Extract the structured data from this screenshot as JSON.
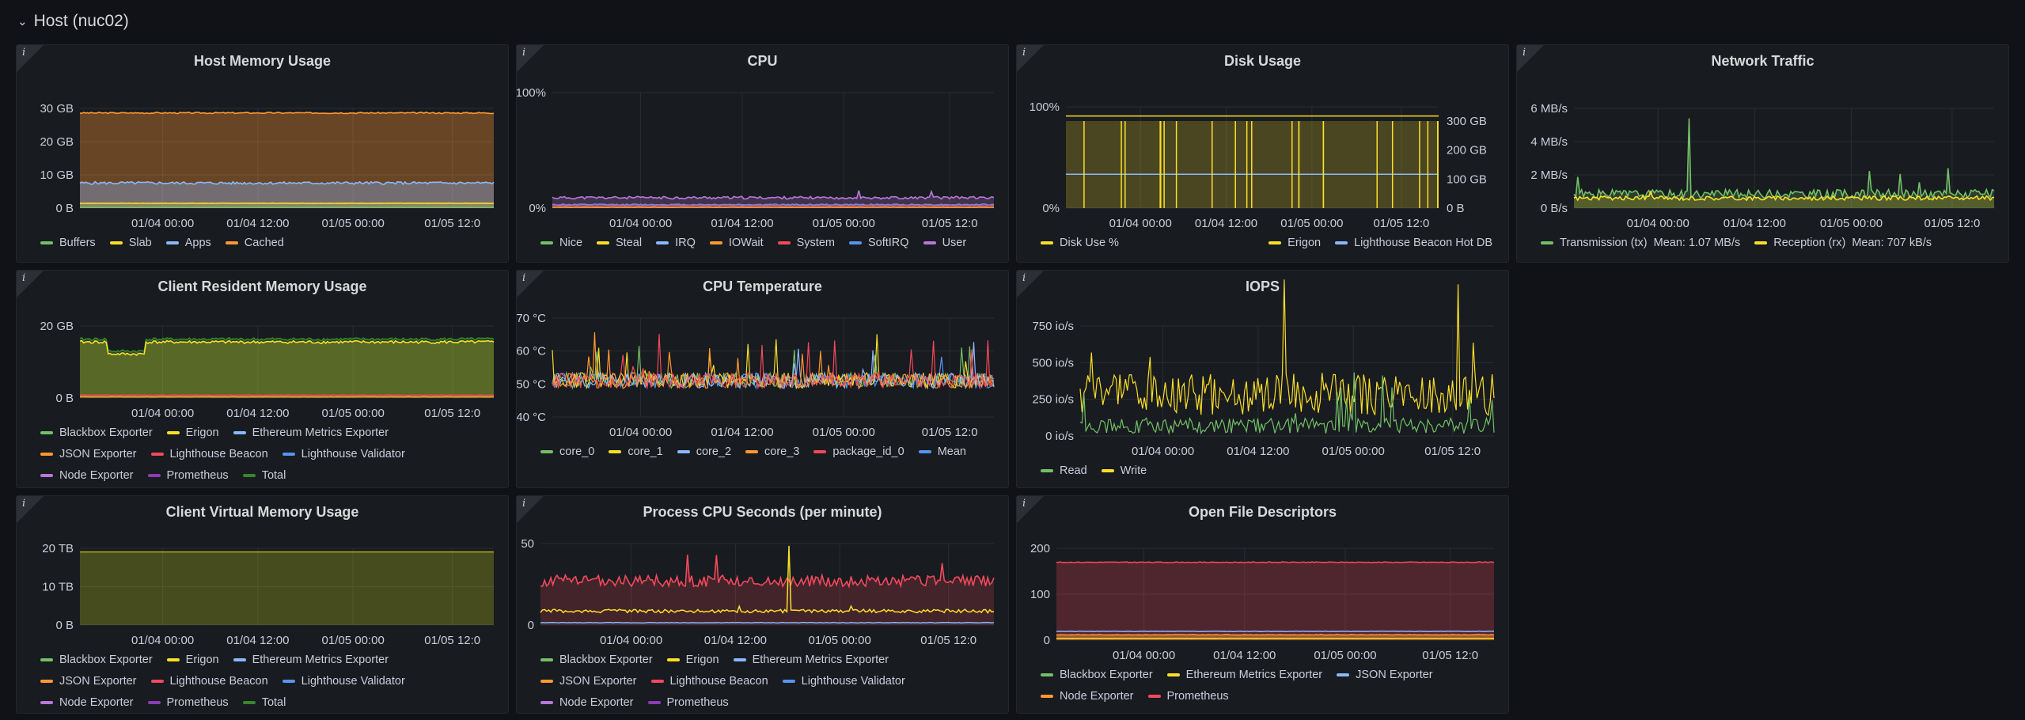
{
  "row": {
    "title": "Host (nuc02)"
  },
  "colors": {
    "green": "#73bf69",
    "yellow": "#fade2a",
    "blue": "#8ab8ff",
    "orange": "#ff9830",
    "red": "#f2495c",
    "blue2": "#5794f2",
    "purple": "#b877d9",
    "violet": "#8f3bb8",
    "darkgreen": "#37872d"
  },
  "panels": [
    {
      "id": "host-memory",
      "title": "Host Memory Usage",
      "yticks": [
        "30 GB",
        "20 GB",
        "10 GB",
        "0 B"
      ],
      "xticks": [
        "01/04 00:00",
        "01/04 12:00",
        "01/05 00:00",
        "01/05 12:0"
      ],
      "legend": [
        {
          "label": "Buffers",
          "color": "#73bf69"
        },
        {
          "label": "Slab",
          "color": "#fade2a"
        },
        {
          "label": "Apps",
          "color": "#8ab8ff"
        },
        {
          "label": "Cached",
          "color": "#ff9830"
        }
      ]
    },
    {
      "id": "cpu",
      "title": "CPU",
      "yticks": [
        "100%",
        "0%"
      ],
      "xticks": [
        "01/04 00:00",
        "01/04 12:00",
        "01/05 00:00",
        "01/05 12:0"
      ],
      "legend": [
        {
          "label": "Nice",
          "color": "#73bf69"
        },
        {
          "label": "Steal",
          "color": "#fade2a"
        },
        {
          "label": "IRQ",
          "color": "#8ab8ff"
        },
        {
          "label": "IOWait",
          "color": "#ff9830"
        },
        {
          "label": "System",
          "color": "#f2495c"
        },
        {
          "label": "SoftIRQ",
          "color": "#5794f2"
        },
        {
          "label": "User",
          "color": "#b877d9"
        }
      ]
    },
    {
      "id": "disk-usage",
      "title": "Disk Usage",
      "yticks": [
        "100%",
        "0%"
      ],
      "yticks_right": [
        "300 GB",
        "200 GB",
        "100 GB",
        "0 B"
      ],
      "xticks": [
        "01/04 00:00",
        "01/04 12:00",
        "01/05 00:00",
        "01/05 12:0"
      ],
      "legend": [
        {
          "label": "Disk Use %",
          "color": "#fade2a"
        }
      ],
      "legend_right": [
        {
          "label": "Erigon",
          "color": "#fade2a"
        },
        {
          "label": "Lighthouse Beacon Hot DB",
          "color": "#8ab8ff"
        }
      ]
    },
    {
      "id": "network",
      "title": "Network Traffic",
      "yticks": [
        "6 MB/s",
        "4 MB/s",
        "2 MB/s",
        "0 B/s"
      ],
      "xticks": [
        "01/04 00:00",
        "01/04 12:00",
        "01/05 00:00",
        "01/05 12:0"
      ],
      "legend": [
        {
          "label": "Transmission (tx)",
          "color": "#73bf69",
          "extra": "Mean: 1.07 MB/s"
        },
        {
          "label": "Reception (rx)",
          "color": "#fade2a",
          "extra": "Mean: 707 kB/s"
        }
      ]
    },
    {
      "id": "client-resident",
      "title": "Client Resident Memory Usage",
      "yticks": [
        "20 GB",
        "0 B"
      ],
      "xticks": [
        "01/04 00:00",
        "01/04 12:00",
        "01/05 00:00",
        "01/05 12:0"
      ],
      "legend_rows": [
        [
          {
            "label": "Blackbox Exporter",
            "color": "#73bf69"
          },
          {
            "label": "Erigon",
            "color": "#fade2a"
          },
          {
            "label": "Ethereum Metrics Exporter",
            "color": "#8ab8ff"
          }
        ],
        [
          {
            "label": "JSON Exporter",
            "color": "#ff9830"
          },
          {
            "label": "Lighthouse Beacon",
            "color": "#f2495c"
          },
          {
            "label": "Lighthouse Validator",
            "color": "#5794f2"
          }
        ],
        [
          {
            "label": "Node Exporter",
            "color": "#b877d9"
          },
          {
            "label": "Prometheus",
            "color": "#8f3bb8"
          },
          {
            "label": "Total",
            "color": "#37872d"
          }
        ]
      ]
    },
    {
      "id": "cpu-temp",
      "title": "CPU Temperature",
      "yticks": [
        "70 °C",
        "60 °C",
        "50 °C",
        "40 °C"
      ],
      "xticks": [
        "01/04 00:00",
        "01/04 12:00",
        "01/05 00:00",
        "01/05 12:0"
      ],
      "legend": [
        {
          "label": "core_0",
          "color": "#73bf69"
        },
        {
          "label": "core_1",
          "color": "#fade2a"
        },
        {
          "label": "core_2",
          "color": "#8ab8ff"
        },
        {
          "label": "core_3",
          "color": "#ff9830"
        },
        {
          "label": "package_id_0",
          "color": "#f2495c"
        },
        {
          "label": "Mean",
          "color": "#5794f2"
        }
      ]
    },
    {
      "id": "iops",
      "title": "IOPS",
      "yticks": [
        "750 io/s",
        "500 io/s",
        "250 io/s",
        "0 io/s"
      ],
      "xticks": [
        "01/04 00:00",
        "01/04 12:00",
        "01/05 00:00",
        "01/05 12:0"
      ],
      "legend": [
        {
          "label": "Read",
          "color": "#73bf69"
        },
        {
          "label": "Write",
          "color": "#fade2a"
        }
      ]
    },
    {
      "id": "client-virtual",
      "title": "Client Virtual Memory Usage",
      "yticks": [
        "20 TB",
        "10 TB",
        "0 B"
      ],
      "xticks": [
        "01/04 00:00",
        "01/04 12:00",
        "01/05 00:00",
        "01/05 12:0"
      ],
      "legend_rows": [
        [
          {
            "label": "Blackbox Exporter",
            "color": "#73bf69"
          },
          {
            "label": "Erigon",
            "color": "#fade2a"
          },
          {
            "label": "Ethereum Metrics Exporter",
            "color": "#8ab8ff"
          }
        ],
        [
          {
            "label": "JSON Exporter",
            "color": "#ff9830"
          },
          {
            "label": "Lighthouse Beacon",
            "color": "#f2495c"
          },
          {
            "label": "Lighthouse Validator",
            "color": "#5794f2"
          }
        ],
        [
          {
            "label": "Node Exporter",
            "color": "#b877d9"
          },
          {
            "label": "Prometheus",
            "color": "#8f3bb8"
          },
          {
            "label": "Total",
            "color": "#37872d"
          }
        ]
      ]
    },
    {
      "id": "process-cpu",
      "title": "Process CPU Seconds (per minute)",
      "yticks": [
        "50",
        "0"
      ],
      "xticks": [
        "01/04 00:00",
        "01/04 12:00",
        "01/05 00:00",
        "01/05 12:0"
      ],
      "legend_rows": [
        [
          {
            "label": "Blackbox Exporter",
            "color": "#73bf69"
          },
          {
            "label": "Erigon",
            "color": "#fade2a"
          },
          {
            "label": "Ethereum Metrics Exporter",
            "color": "#8ab8ff"
          }
        ],
        [
          {
            "label": "JSON Exporter",
            "color": "#ff9830"
          },
          {
            "label": "Lighthouse Beacon",
            "color": "#f2495c"
          },
          {
            "label": "Lighthouse Validator",
            "color": "#5794f2"
          }
        ],
        [
          {
            "label": "Node Exporter",
            "color": "#b877d9"
          },
          {
            "label": "Prometheus",
            "color": "#8f3bb8"
          }
        ]
      ]
    },
    {
      "id": "open-fd",
      "title": "Open File Descriptors",
      "yticks": [
        "200",
        "100",
        "0"
      ],
      "xticks": [
        "01/04 00:00",
        "01/04 12:00",
        "01/05 00:00",
        "01/05 12:0"
      ],
      "legend_rows": [
        [
          {
            "label": "Blackbox Exporter",
            "color": "#73bf69"
          },
          {
            "label": "Ethereum Metrics Exporter",
            "color": "#fade2a"
          },
          {
            "label": "JSON Exporter",
            "color": "#8ab8ff"
          }
        ],
        [
          {
            "label": "Node Exporter",
            "color": "#ff9830"
          },
          {
            "label": "Prometheus",
            "color": "#f2495c"
          }
        ]
      ]
    }
  ]
}
